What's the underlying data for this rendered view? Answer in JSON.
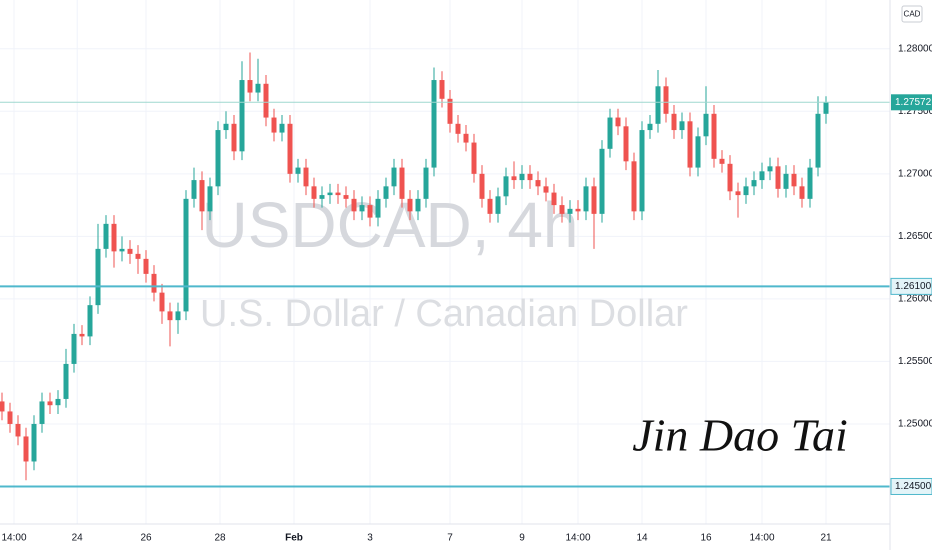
{
  "chart_data": {
    "type": "candlestick",
    "title": "USDCAD, 4h",
    "subtitle": "U.S. Dollar / Canadian Dollar",
    "signature": "Jin Dao Tai",
    "currency": "CAD",
    "up_color": "#26a69a",
    "down_color": "#ef5350",
    "line_color": "#4fb8cc",
    "grid": true,
    "ylim": [
      1.242,
      1.2839
    ],
    "yticks": [
      {
        "value": 1.25,
        "label": "1.25000"
      },
      {
        "value": 1.255,
        "label": "1.25500"
      },
      {
        "value": 1.26,
        "label": "1.26000"
      },
      {
        "value": 1.265,
        "label": "1.26500"
      },
      {
        "value": 1.27,
        "label": "1.27000"
      },
      {
        "value": 1.275,
        "label": "1.27500"
      },
      {
        "value": 1.28,
        "label": "1.28000"
      }
    ],
    "xticks": [
      {
        "value": 1.5,
        "label": "14:00"
      },
      {
        "value": 9.4,
        "label": "24"
      },
      {
        "value": 18,
        "label": "26"
      },
      {
        "value": 27.25,
        "label": "28"
      },
      {
        "value": 36.5,
        "label": "Feb"
      },
      {
        "value": 46,
        "label": "3"
      },
      {
        "value": 56,
        "label": "7"
      },
      {
        "value": 65,
        "label": "9"
      },
      {
        "value": 72,
        "label": "14:00"
      },
      {
        "value": 80,
        "label": "14"
      },
      {
        "value": 88,
        "label": "16"
      },
      {
        "value": 95,
        "label": "14:00"
      },
      {
        "value": 103,
        "label": "21"
      }
    ],
    "hlines": [
      {
        "value": 1.261,
        "label": "1.26100"
      },
      {
        "value": 1.245,
        "label": "1.24500"
      }
    ],
    "open": [
      1.2518,
      1.251,
      1.25,
      1.249,
      1.247,
      1.25,
      1.2518,
      1.2515,
      1.252,
      1.2548,
      1.2572,
      1.257,
      1.2595,
      1.264,
      1.266,
      1.2638,
      1.264,
      1.2636,
      1.2632,
      1.262,
      1.2605,
      1.259,
      1.2583,
      1.259,
      1.268,
      1.2695,
      1.267,
      1.269,
      1.2735,
      1.274,
      1.2718,
      1.2775,
      1.2765,
      1.2772,
      1.2745,
      1.2733,
      1.274,
      1.27,
      1.2705,
      1.269,
      1.268,
      1.2683,
      1.2685,
      1.2683,
      1.268,
      1.267,
      1.2675,
      1.2665,
      1.268,
      1.269,
      1.2705,
      1.268,
      1.267,
      1.268,
      1.2705,
      1.2775,
      1.276,
      1.274,
      1.2732,
      1.2725,
      1.27,
      1.268,
      1.2668,
      1.2682,
      1.2698,
      1.2695,
      1.27,
      1.2695,
      1.269,
      1.2685,
      1.2675,
      1.2668,
      1.2672,
      1.267,
      1.269,
      1.2668,
      1.272,
      1.2745,
      1.2738,
      1.271,
      1.267,
      1.2735,
      1.274,
      1.277,
      1.2748,
      1.2735,
      1.2742,
      1.2705,
      1.273,
      1.2748,
      1.2712,
      1.2708,
      1.2686,
      1.2683,
      1.269,
      1.2695,
      1.2702,
      1.2706,
      1.2688,
      1.27,
      1.269,
      1.268,
      1.2705,
      1.2748
    ],
    "high": [
      1.2525,
      1.2517,
      1.2507,
      1.2497,
      1.2507,
      1.2525,
      1.2525,
      1.2527,
      1.256,
      1.258,
      1.2579,
      1.2602,
      1.266,
      1.2667,
      1.2667,
      1.265,
      1.2647,
      1.2643,
      1.2639,
      1.2627,
      1.2612,
      1.2597,
      1.2597,
      1.2687,
      1.2705,
      1.2702,
      1.2697,
      1.2742,
      1.275,
      1.2747,
      1.279,
      1.2797,
      1.2792,
      1.2779,
      1.2752,
      1.2747,
      1.2747,
      1.2712,
      1.2712,
      1.2697,
      1.269,
      1.2692,
      1.2692,
      1.269,
      1.2687,
      1.2682,
      1.2682,
      1.2687,
      1.2697,
      1.2712,
      1.2712,
      1.2687,
      1.2687,
      1.2712,
      1.2785,
      1.2782,
      1.2767,
      1.2747,
      1.2739,
      1.2732,
      1.2707,
      1.2687,
      1.2689,
      1.2705,
      1.271,
      1.2707,
      1.2707,
      1.2702,
      1.2697,
      1.2692,
      1.2682,
      1.2679,
      1.2679,
      1.2697,
      1.2697,
      1.2727,
      1.2752,
      1.2752,
      1.2745,
      1.2717,
      1.2742,
      1.2747,
      1.2783,
      1.2777,
      1.2755,
      1.2749,
      1.2749,
      1.2737,
      1.277,
      1.2755,
      1.2719,
      1.2715,
      1.2693,
      1.2697,
      1.2702,
      1.2709,
      1.2713,
      1.2713,
      1.2707,
      1.2707,
      1.2697,
      1.2712,
      1.2762,
      1.2762
    ],
    "low": [
      1.2503,
      1.2493,
      1.2483,
      1.2455,
      1.2463,
      1.2493,
      1.2508,
      1.2508,
      1.2513,
      1.2541,
      1.2563,
      1.2563,
      1.2588,
      1.2633,
      1.2625,
      1.263,
      1.2628,
      1.262,
      1.2613,
      1.2598,
      1.258,
      1.2562,
      1.2572,
      1.2583,
      1.2673,
      1.2655,
      1.2663,
      1.2683,
      1.2728,
      1.2711,
      1.2711,
      1.2758,
      1.2758,
      1.2738,
      1.2726,
      1.2726,
      1.2693,
      1.2693,
      1.2683,
      1.2673,
      1.2673,
      1.2676,
      1.2676,
      1.2673,
      1.2663,
      1.2663,
      1.2658,
      1.2658,
      1.2673,
      1.2683,
      1.2673,
      1.2663,
      1.2663,
      1.2673,
      1.2698,
      1.2753,
      1.2733,
      1.2725,
      1.2718,
      1.2693,
      1.2673,
      1.2661,
      1.2661,
      1.2675,
      1.2688,
      1.2688,
      1.2688,
      1.2683,
      1.2678,
      1.2668,
      1.2661,
      1.2661,
      1.2663,
      1.2663,
      1.264,
      1.2661,
      1.2713,
      1.2731,
      1.2703,
      1.2663,
      1.2663,
      1.2728,
      1.2733,
      1.2741,
      1.2728,
      1.2728,
      1.2698,
      1.2698,
      1.2723,
      1.2705,
      1.2701,
      1.2679,
      1.2665,
      1.2676,
      1.2683,
      1.2688,
      1.2695,
      1.2681,
      1.2681,
      1.2683,
      1.2673,
      1.2673,
      1.2698,
      1.274
    ],
    "close": [
      1.251,
      1.25,
      1.249,
      1.247,
      1.25,
      1.2518,
      1.2515,
      1.252,
      1.2548,
      1.2572,
      1.257,
      1.2595,
      1.264,
      1.266,
      1.2638,
      1.264,
      1.2636,
      1.2632,
      1.262,
      1.2605,
      1.259,
      1.2583,
      1.259,
      1.268,
      1.2695,
      1.267,
      1.269,
      1.2735,
      1.274,
      1.2718,
      1.2775,
      1.2765,
      1.2772,
      1.2745,
      1.2733,
      1.274,
      1.27,
      1.2705,
      1.269,
      1.268,
      1.2683,
      1.2685,
      1.2683,
      1.268,
      1.267,
      1.2675,
      1.2665,
      1.268,
      1.269,
      1.2705,
      1.268,
      1.267,
      1.268,
      1.2705,
      1.2775,
      1.276,
      1.274,
      1.2732,
      1.2725,
      1.27,
      1.268,
      1.2668,
      1.2682,
      1.2698,
      1.2695,
      1.27,
      1.2695,
      1.269,
      1.2685,
      1.2675,
      1.2668,
      1.2672,
      1.267,
      1.269,
      1.2668,
      1.272,
      1.2745,
      1.2738,
      1.271,
      1.267,
      1.2735,
      1.274,
      1.277,
      1.2748,
      1.2735,
      1.2742,
      1.2705,
      1.273,
      1.2748,
      1.2712,
      1.2708,
      1.2686,
      1.2683,
      1.269,
      1.2695,
      1.2702,
      1.2706,
      1.2688,
      1.27,
      1.269,
      1.268,
      1.2705,
      1.2748,
      1.27572
    ]
  }
}
